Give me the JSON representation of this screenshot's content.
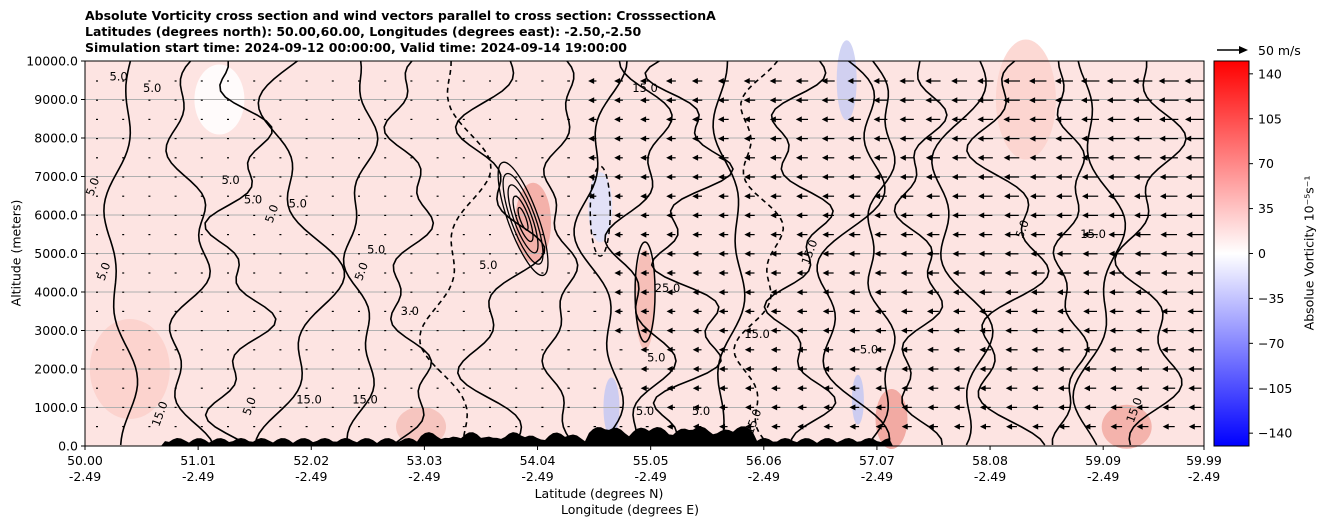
{
  "chart_data": {
    "type": "heatmap",
    "title_lines": [
      "Absolute Vorticity cross section and wind vectors parallel to cross section: CrosssectionA",
      "Latitudes (degrees north): 50.00,60.00, Longitudes (degrees east): -2.50,-2.50",
      "Simulation start time: 2024-09-12 00:00:00, Valid time: 2024-09-14 19:00:00"
    ],
    "ylabel": "Altitude (meters)",
    "xlabel_lines": [
      "Latitude (degrees N)",
      "Longitude (degrees E)"
    ],
    "ylim": [
      0,
      10000
    ],
    "yticks": [
      "0.0",
      "1000.0",
      "2000.0",
      "3000.0",
      "4000.0",
      "5000.0",
      "6000.0",
      "7000.0",
      "8000.0",
      "9000.0",
      "10000.0"
    ],
    "xlim": [
      50.0,
      59.99
    ],
    "xticks": [
      {
        "lat": "50.00",
        "lon": "-2.49",
        "value": 50.0
      },
      {
        "lat": "51.01",
        "lon": "-2.49",
        "value": 51.01
      },
      {
        "lat": "52.02",
        "lon": "-2.49",
        "value": 52.02
      },
      {
        "lat": "53.03",
        "lon": "-2.49",
        "value": 53.03
      },
      {
        "lat": "54.04",
        "lon": "-2.49",
        "value": 54.04
      },
      {
        "lat": "55.05",
        "lon": "-2.49",
        "value": 55.05
      },
      {
        "lat": "56.06",
        "lon": "-2.49",
        "value": 56.06
      },
      {
        "lat": "57.07",
        "lon": "-2.49",
        "value": 57.07
      },
      {
        "lat": "58.08",
        "lon": "-2.49",
        "value": 58.08
      },
      {
        "lat": "59.09",
        "lon": "-2.49",
        "value": 59.09
      },
      {
        "lat": "59.99",
        "lon": "-2.49",
        "value": 59.99
      }
    ],
    "grid": "horizontal",
    "colorbar": {
      "label": "Absolue Vorticity 10⁻⁵s⁻¹",
      "range": [
        -150,
        150
      ],
      "ticks": [
        "140",
        "105",
        "70",
        "35",
        "0",
        "−35",
        "−70",
        "−105",
        "−140"
      ],
      "tick_values": [
        140,
        105,
        70,
        35,
        0,
        -35,
        -70,
        -105,
        -140
      ],
      "colormap": "bwr"
    },
    "quiver_key": {
      "label": "50 m/s",
      "value": 50
    },
    "contour_labels": [
      {
        "text": "5.0",
        "lat": 50.1,
        "alt": 6700
      },
      {
        "text": "5.0",
        "lat": 50.3,
        "alt": 9500
      },
      {
        "text": "5.0",
        "lat": 50.6,
        "alt": 9200
      },
      {
        "text": "5.0",
        "lat": 50.2,
        "alt": 4500
      },
      {
        "text": "5.0",
        "lat": 51.3,
        "alt": 6800
      },
      {
        "text": "5.0",
        "lat": 51.5,
        "alt": 6300
      },
      {
        "text": "5.0",
        "lat": 51.7,
        "alt": 6000
      },
      {
        "text": "5.0",
        "lat": 51.9,
        "alt": 6200
      },
      {
        "text": "5.0",
        "lat": 52.6,
        "alt": 5000
      },
      {
        "text": "5.0",
        "lat": 52.5,
        "alt": 4500
      },
      {
        "text": "5.0",
        "lat": 53.6,
        "alt": 4600
      },
      {
        "text": "3.0",
        "lat": 52.9,
        "alt": 3400
      },
      {
        "text": "15.0",
        "lat": 50.7,
        "alt": 800
      },
      {
        "text": "15.0",
        "lat": 52.0,
        "alt": 1100
      },
      {
        "text": "15.0",
        "lat": 52.5,
        "alt": 1100
      },
      {
        "text": "5.0",
        "lat": 51.5,
        "alt": 1000
      },
      {
        "text": "5.0",
        "lat": 55.1,
        "alt": 2200
      },
      {
        "text": "15.0",
        "lat": 56.0,
        "alt": 2800
      },
      {
        "text": "15.0",
        "lat": 56.5,
        "alt": 5000
      },
      {
        "text": "25.0",
        "lat": 55.2,
        "alt": 4000
      },
      {
        "text": "5.0",
        "lat": 57.0,
        "alt": 2400
      },
      {
        "text": "5.0",
        "lat": 58.4,
        "alt": 5600
      },
      {
        "text": "15.0",
        "lat": 59.0,
        "alt": 5400
      },
      {
        "text": "15.0",
        "lat": 55.0,
        "alt": 9200
      },
      {
        "text": "15.0",
        "lat": 59.4,
        "alt": 900
      },
      {
        "text": "5.0",
        "lat": 55.5,
        "alt": 800
      },
      {
        "text": "5.0",
        "lat": 55.0,
        "alt": 800
      },
      {
        "text": "15.0",
        "lat": 56.0,
        "alt": 600
      }
    ]
  }
}
